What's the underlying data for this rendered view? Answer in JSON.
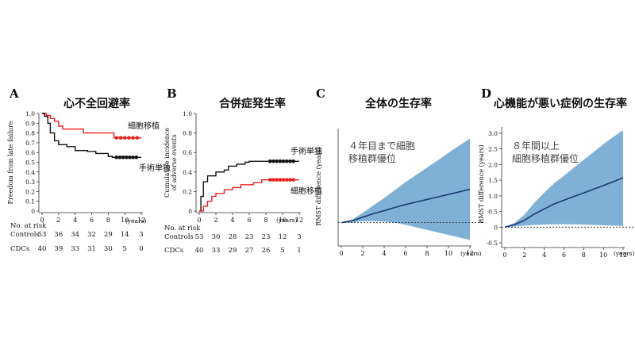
{
  "chart_data": [
    {
      "panel": "A",
      "type": "line",
      "title": "心不全回避率",
      "ylabel": "Freedom from late failure",
      "xlabel": "(years)",
      "xlim": [
        0,
        12
      ],
      "ylim": [
        0,
        1.0
      ],
      "xticks": [
        0,
        2,
        4,
        6,
        8,
        10,
        12
      ],
      "yticks": [
        0,
        0.1,
        0.2,
        0.3,
        0.4,
        0.5,
        0.6,
        0.7,
        0.8,
        0.9,
        1.0
      ],
      "ytick_labels": [
        "0",
        "0.1",
        "0.2",
        "0.3",
        "0.4",
        "0.5",
        "0.6",
        "0.7",
        "0.8",
        "0.9",
        "1.0"
      ],
      "series": [
        {
          "name": "細胞移植",
          "color": "#e8231f",
          "points": [
            [
              0,
              1.0
            ],
            [
              0.5,
              0.98
            ],
            [
              1.0,
              0.95
            ],
            [
              1.5,
              0.92
            ],
            [
              2.0,
              0.87
            ],
            [
              2.5,
              0.84
            ],
            [
              4.5,
              0.84
            ],
            [
              5.0,
              0.8
            ],
            [
              8.5,
              0.8
            ],
            [
              8.7,
              0.75
            ],
            [
              12,
              0.75
            ]
          ],
          "censor": [
            9.0,
            9.5,
            10.0,
            10.5,
            11.0,
            11.5
          ]
        },
        {
          "name": "手術単独",
          "color": "#111111",
          "points": [
            [
              0,
              1.0
            ],
            [
              0.3,
              0.97
            ],
            [
              0.7,
              0.9
            ],
            [
              1.0,
              0.8
            ],
            [
              1.5,
              0.72
            ],
            [
              2.0,
              0.68
            ],
            [
              3.0,
              0.66
            ],
            [
              4.0,
              0.62
            ],
            [
              5.5,
              0.61
            ],
            [
              6.5,
              0.59
            ],
            [
              8.0,
              0.56
            ],
            [
              8.5,
              0.55
            ],
            [
              12,
              0.55
            ]
          ],
          "censor": [
            9.0,
            9.4,
            9.8,
            10.2,
            10.6,
            11.0,
            11.4
          ]
        }
      ],
      "risk_table": {
        "heading": "No. at risk",
        "rows": [
          {
            "label": "Controls",
            "values": [
              "53",
              "36",
              "34",
              "32",
              "29",
              "14",
              "3"
            ]
          },
          {
            "label": "CDCs",
            "values": [
              "40",
              "39",
              "33",
              "31",
              "30",
              "5",
              "0"
            ]
          }
        ]
      }
    },
    {
      "panel": "B",
      "type": "line",
      "title": "合併症発生率",
      "ylabel": "Cumulative incidence of adverse events",
      "xlabel": "(years)",
      "xlim": [
        0,
        12
      ],
      "ylim": [
        0,
        1.0
      ],
      "xticks": [
        0,
        2,
        4,
        6,
        8,
        10,
        12
      ],
      "yticks": [
        0,
        0.2,
        0.4,
        0.6,
        0.8,
        1.0
      ],
      "ytick_labels": [
        "0",
        "0.2",
        "0.4",
        "0.6",
        "0.8",
        "1.0"
      ],
      "series": [
        {
          "name": "手術単独",
          "color": "#111111",
          "points": [
            [
              0,
              0
            ],
            [
              0.2,
              0.15
            ],
            [
              0.5,
              0.3
            ],
            [
              1.0,
              0.36
            ],
            [
              2.0,
              0.4
            ],
            [
              3.0,
              0.42
            ],
            [
              3.5,
              0.46
            ],
            [
              4.5,
              0.48
            ],
            [
              5.5,
              0.5
            ],
            [
              6.0,
              0.51
            ],
            [
              12,
              0.51
            ]
          ],
          "censor": [
            8.5,
            8.9,
            9.3,
            9.7,
            10.1,
            10.5,
            10.9,
            11.3
          ]
        },
        {
          "name": "細胞移植",
          "color": "#e8231f",
          "points": [
            [
              0,
              0
            ],
            [
              0.5,
              0.05
            ],
            [
              1.0,
              0.1
            ],
            [
              1.5,
              0.15
            ],
            [
              2.0,
              0.18
            ],
            [
              3.0,
              0.22
            ],
            [
              4.0,
              0.24
            ],
            [
              5.0,
              0.27
            ],
            [
              6.5,
              0.29
            ],
            [
              7.5,
              0.32
            ],
            [
              12,
              0.32
            ]
          ],
          "censor": [
            8.5,
            8.9,
            9.3,
            9.7,
            10.1,
            10.5,
            10.9,
            11.3
          ]
        }
      ],
      "risk_table": {
        "heading": "No. at risk",
        "rows": [
          {
            "label": "Controls",
            "values": [
              "53",
              "30",
              "28",
              "23",
              "23",
              "12",
              "3"
            ]
          },
          {
            "label": "CDCs",
            "values": [
              "40",
              "33",
              "29",
              "27",
              "26",
              "5",
              "1"
            ]
          }
        ]
      }
    },
    {
      "panel": "C",
      "type": "area",
      "title": "全体の生存率",
      "ylabel": "RMST difference (years)",
      "xlabel": "(years)",
      "annotation": [
        "４年目まで細胞",
        "移植群優位"
      ],
      "xlim": [
        0,
        12
      ],
      "ylim": [
        -0.6,
        2.6
      ],
      "xticks": [
        0,
        2,
        4,
        6,
        8,
        10,
        12
      ],
      "yticks": [],
      "ytick_labels": [],
      "color": "#1a3a73",
      "band_color": "#7fb0d6",
      "x": [
        0,
        1,
        2,
        3,
        4,
        5,
        6,
        7,
        8,
        9,
        10,
        11,
        12
      ],
      "mean": [
        0,
        0.05,
        0.15,
        0.25,
        0.33,
        0.42,
        0.5,
        0.57,
        0.64,
        0.71,
        0.78,
        0.85,
        0.92
      ],
      "lower": [
        0,
        0.0,
        0.04,
        0.04,
        0.03,
        0.0,
        -0.06,
        -0.13,
        -0.2,
        -0.27,
        -0.34,
        -0.41,
        -0.48
      ],
      "upper": [
        0,
        0.08,
        0.27,
        0.48,
        0.68,
        0.9,
        1.12,
        1.32,
        1.52,
        1.72,
        1.93,
        2.13,
        2.32
      ]
    },
    {
      "panel": "D",
      "type": "area",
      "title": "心機能が悪い症例の生存率",
      "ylabel": "RMST difference (years)",
      "xlabel": "(years)",
      "annotation": [
        "８年間以上",
        "細胞移植群優位"
      ],
      "xlim": [
        0,
        12
      ],
      "ylim": [
        -0.6,
        3.2
      ],
      "xticks": [
        0,
        2,
        4,
        6,
        8,
        10,
        12
      ],
      "yticks": [
        -0.5,
        0,
        0.5,
        1.0,
        1.5,
        2.0,
        2.5,
        3.0
      ],
      "ytick_labels": [
        "-0.5",
        "0",
        "0.5",
        "1.0",
        "1.5",
        "2.0",
        "2.5",
        "3.0"
      ],
      "color": "#1a3a73",
      "band_color": "#7fb0d6",
      "x": [
        0,
        1,
        2,
        3,
        4,
        5,
        6,
        7,
        8,
        9,
        10,
        11,
        12
      ],
      "mean": [
        0,
        0.08,
        0.22,
        0.42,
        0.58,
        0.74,
        0.86,
        0.98,
        1.09,
        1.21,
        1.33,
        1.45,
        1.58
      ],
      "lower": [
        0,
        0.02,
        0.05,
        0.07,
        0.08,
        0.09,
        0.09,
        0.09,
        0.08,
        0.07,
        0.06,
        0.05,
        0.04
      ],
      "upper": [
        0,
        0.14,
        0.4,
        0.78,
        1.1,
        1.4,
        1.64,
        1.9,
        2.15,
        2.4,
        2.65,
        2.88,
        3.1
      ]
    }
  ],
  "panel_labels": [
    "A",
    "B",
    "C",
    "D"
  ]
}
